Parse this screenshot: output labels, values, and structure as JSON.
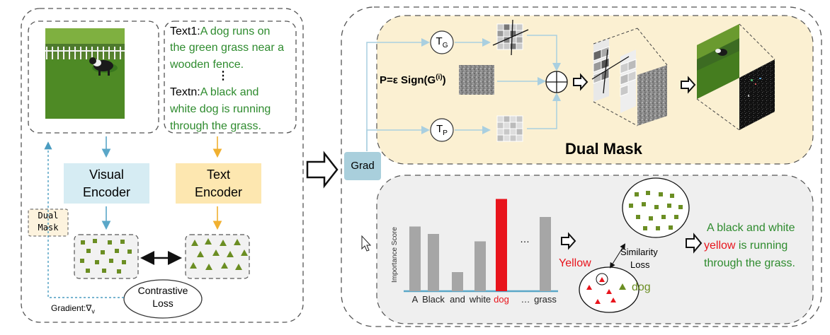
{
  "left_panel": {
    "text1_prefix": "Text1:",
    "text1_line1": "A dog runs on",
    "text1_line2": "the green grass near a",
    "text1_line3": "wooden fence.",
    "vdots": "⋮",
    "textn_prefix": "Textn:",
    "textn_line1": "A black and",
    "textn_line2": "white dog is running",
    "textn_line3": "through the grass.",
    "visual_encoder_line1": "Visual",
    "visual_encoder_line2": "Encoder",
    "text_encoder_line1": "Text",
    "text_encoder_line2": "Encoder",
    "dual_mask_line1": "Dual",
    "dual_mask_line2": "Mask",
    "contrastive_line1": "Contrastive",
    "contrastive_line2": "Loss",
    "gradient_label": "Gradient:∇",
    "gradient_sub": "v"
  },
  "middle": {
    "grad_label": "Grad"
  },
  "dual_mask_panel": {
    "tg_label": "T",
    "tg_sub": "G",
    "tp_label": "T",
    "tp_sub": "P",
    "formula_main": "P=ε Sign(G",
    "formula_sup": "(i)",
    "formula_close": ")",
    "plus_symbol": "⊕",
    "title": "Dual Mask"
  },
  "importance_panel": {
    "ylabel": "Importance Score",
    "ellipsis": "…",
    "yellow_label": "Yellow",
    "similarity_line1": "Similarity",
    "similarity_line2": "Loss",
    "dog_label": "dog",
    "output_line1": "A black and white",
    "output_word_yellow": "yellow",
    "output_line2_rest": " is running",
    "output_line3": "through the grass."
  },
  "colors": {
    "text_green": "#2e8b2e",
    "encoder_blue": "#d6ecf3",
    "encoder_yellow": "#fde7b0",
    "arrow_blue": "#5aa7c8",
    "arrow_orange": "#f0b030",
    "feature_green": "#6b8e23",
    "highlight_red": "#e8141c",
    "mask_panel_bg": "#fbf0d2",
    "importance_panel_bg": "#efefef",
    "grad_box": "#a9cfdc",
    "bar_gray": "#a6a6a6"
  },
  "chart_data": {
    "type": "bar",
    "ylabel": "Importance Score",
    "categories": [
      "A",
      "Black",
      "and",
      "white",
      "dog",
      "…",
      "grass"
    ],
    "values": [
      0.61,
      0.54,
      0.18,
      0.47,
      0.87,
      null,
      0.7
    ],
    "highlight": "dog"
  }
}
